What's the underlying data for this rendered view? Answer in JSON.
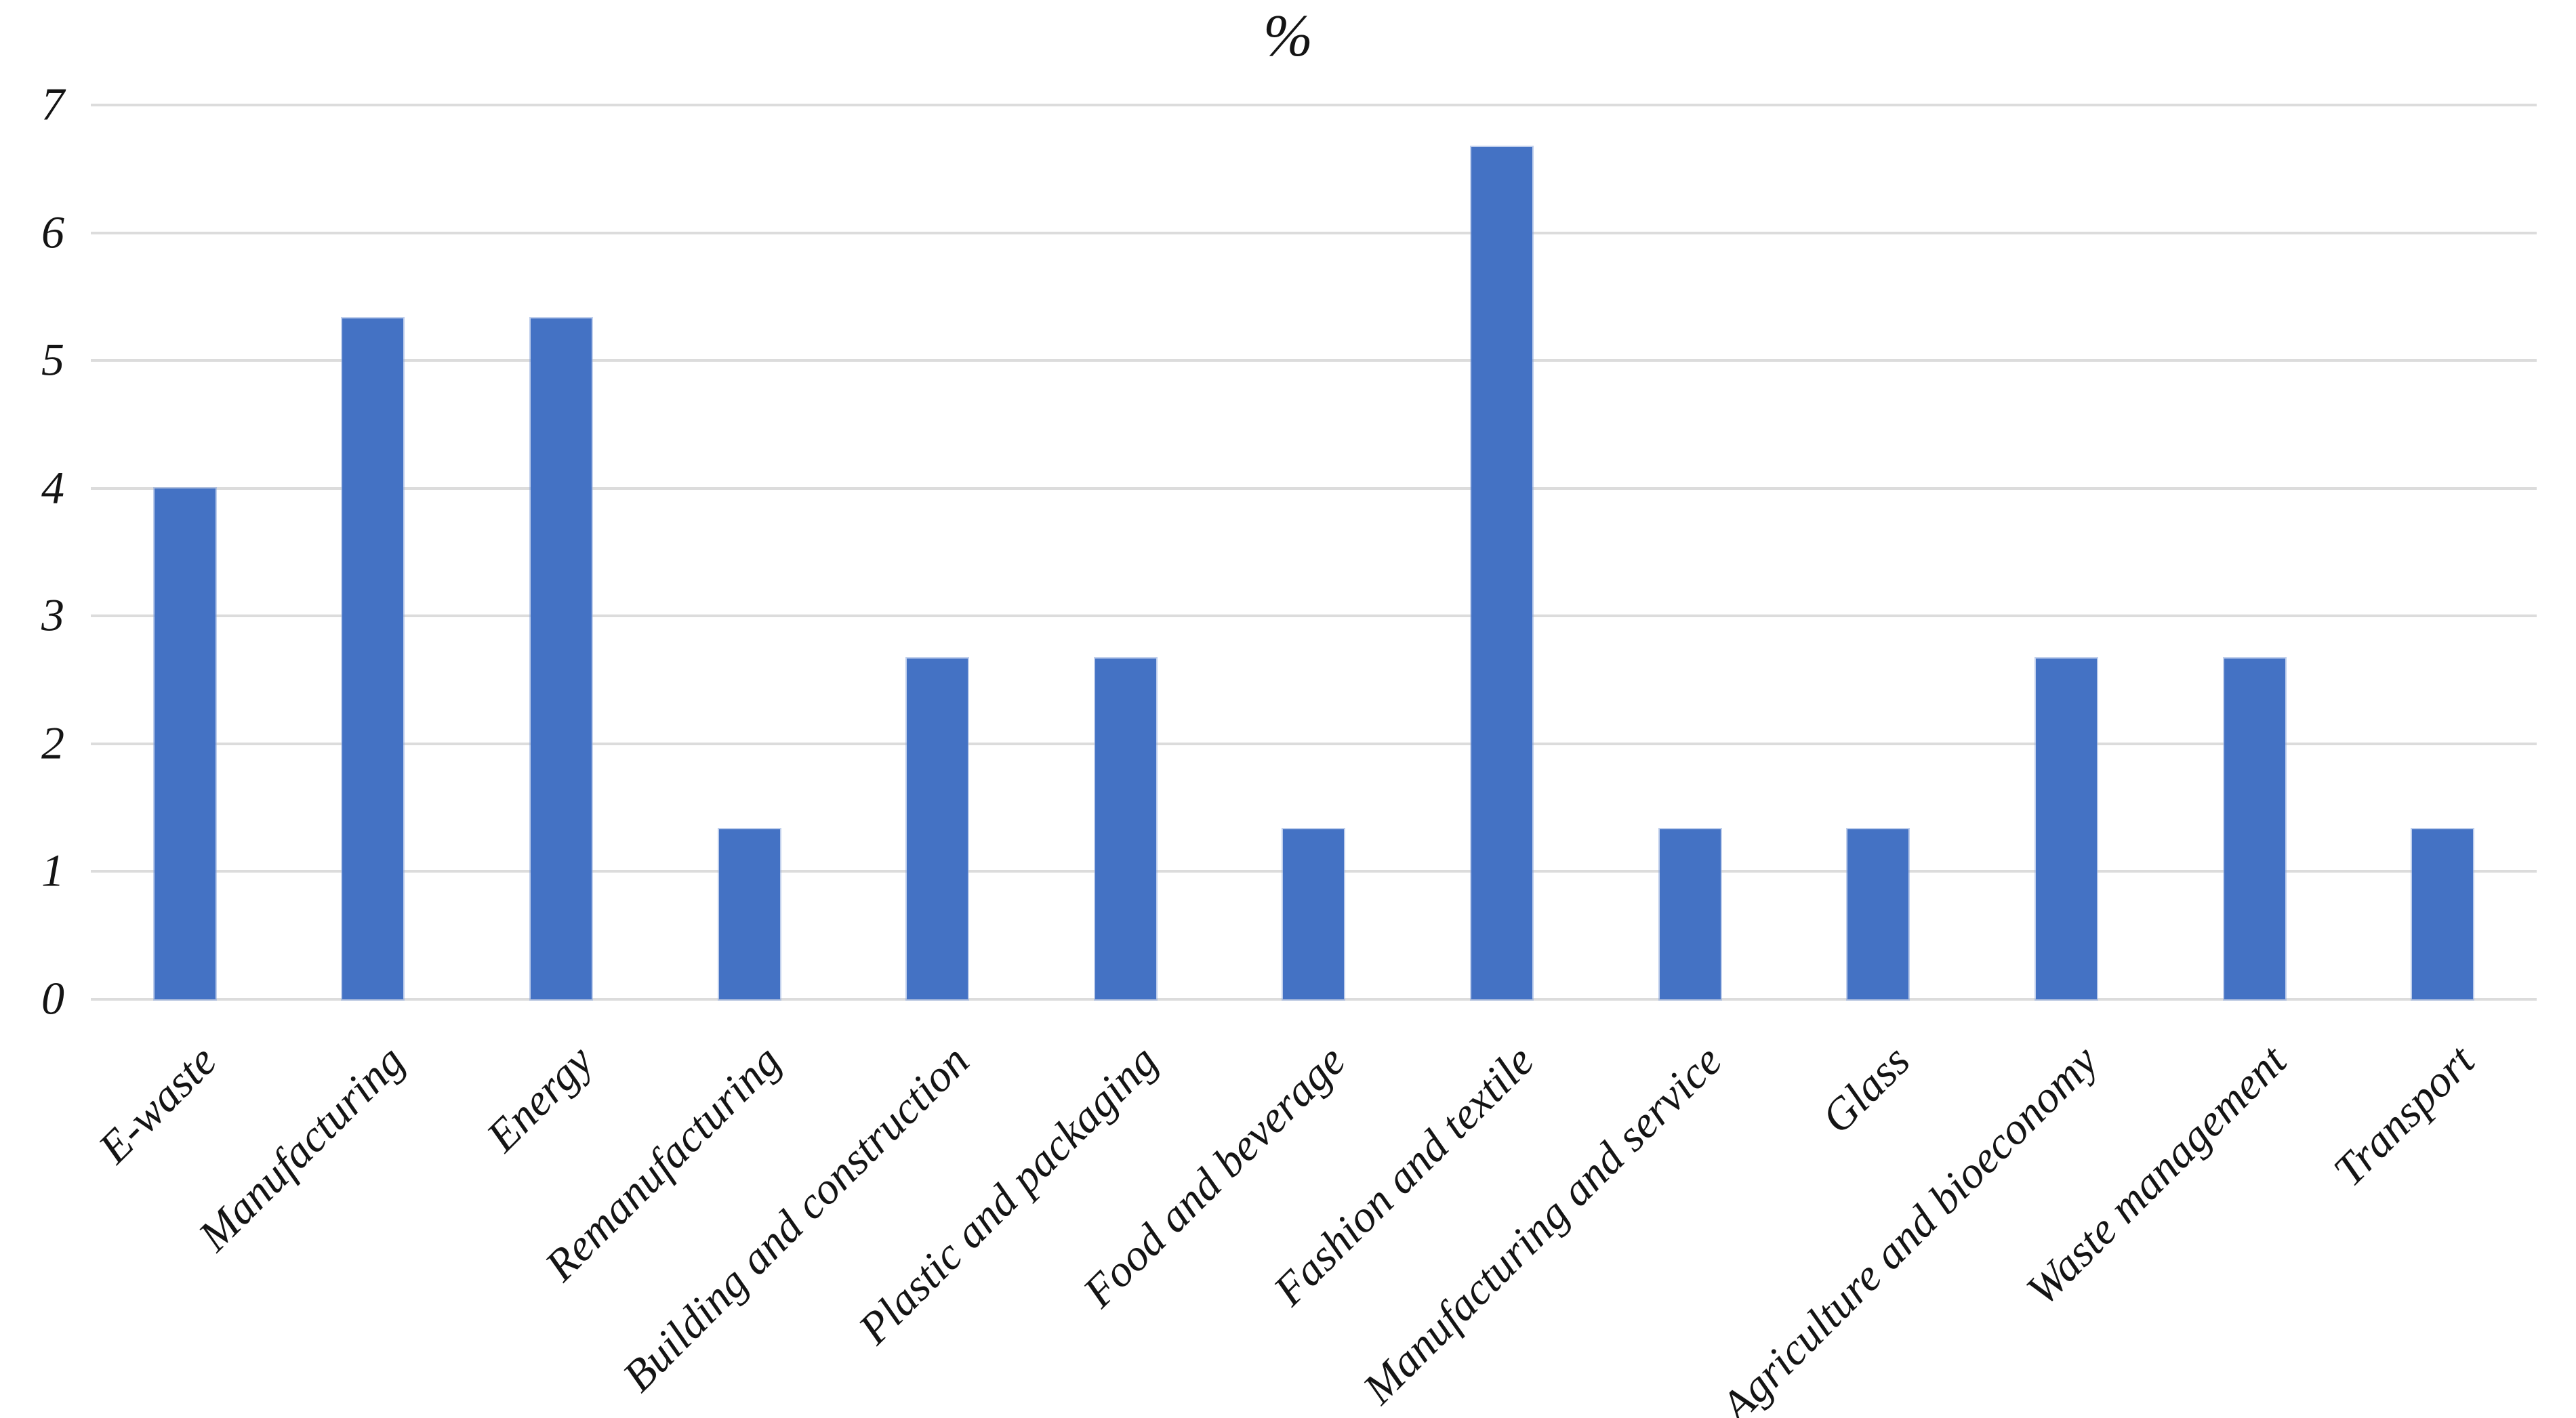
{
  "chart_data": {
    "type": "bar",
    "title": "%",
    "categories": [
      "E-waste",
      "Manufacturing",
      "Energy",
      "Remanufacturing",
      "Building and construction",
      "Plastic and packaging",
      "Food and beverage",
      "Fashion and textile",
      "Manufacturing and service",
      "Glass",
      "Agriculture and bioeconomy",
      "Waste management",
      "Transport"
    ],
    "values": [
      4,
      5.33,
      5.33,
      1.33,
      2.67,
      2.67,
      1.33,
      6.67,
      1.33,
      1.33,
      2.67,
      2.67,
      1.33
    ],
    "xlabel": "",
    "ylabel": "",
    "ylim": [
      0,
      7
    ],
    "yticks": [
      0,
      1,
      2,
      3,
      4,
      5,
      6,
      7
    ],
    "grid": "horizontal",
    "legend": "none",
    "bar_color": "#4472C4",
    "gridline_color": "#DCDCDC",
    "text_color": "#141414",
    "background_color": "#FFFFFF"
  }
}
